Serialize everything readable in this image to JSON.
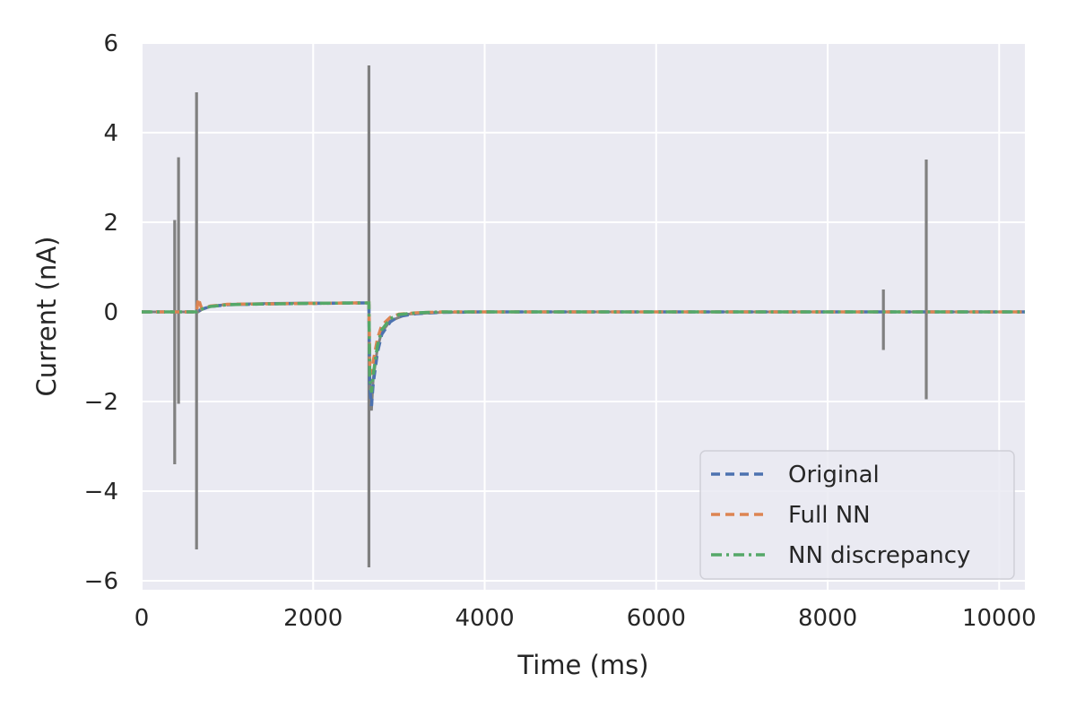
{
  "chart_data": {
    "type": "line",
    "title": "",
    "xlabel": "Time (ms)",
    "ylabel": "Current (nA)",
    "xlim": [
      0,
      10300
    ],
    "ylim": [
      -6.2,
      6.0
    ],
    "xticks": [
      0,
      2000,
      4000,
      6000,
      8000,
      10000
    ],
    "xtick_labels": [
      "0",
      "2000",
      "4000",
      "6000",
      "8000",
      "10000"
    ],
    "yticks": [
      -6,
      -4,
      -2,
      0,
      2,
      4,
      6
    ],
    "ytick_labels": [
      "−6",
      "−4",
      "−2",
      "0",
      "2",
      "4",
      "6"
    ],
    "grid": true,
    "legend_position": "lower-right",
    "raw_trace": {
      "color": "#808080",
      "baseline_segments": [
        {
          "x": [
            0,
            400,
            420,
            660,
            700,
            800,
            1000,
            1500,
            2000,
            2500,
            2650
          ],
          "y": [
            0,
            0,
            0,
            0,
            0.05,
            0.12,
            0.17,
            0.19,
            0.2,
            0.2,
            0.2
          ]
        },
        {
          "x": [
            2650,
            2665,
            2680,
            2700,
            2750,
            2800,
            2900,
            3100,
            3500,
            4000,
            5000,
            10300
          ],
          "y": [
            0.2,
            -2.0,
            -2.2,
            -1.5,
            -0.8,
            -0.45,
            -0.2,
            -0.05,
            -0.01,
            0,
            0,
            0
          ]
        }
      ],
      "spikes": [
        {
          "x": 385,
          "ymin": -3.4,
          "ymax": 2.05
        },
        {
          "x": 430,
          "ymin": -2.05,
          "ymax": 3.45
        },
        {
          "x": 640,
          "ymin": -5.3,
          "ymax": 4.9
        },
        {
          "x": 2650,
          "ymin": -5.7,
          "ymax": 5.5
        },
        {
          "x": 8650,
          "ymin": -0.85,
          "ymax": 0.5
        },
        {
          "x": 9150,
          "ymin": -1.95,
          "ymax": 3.4
        }
      ]
    },
    "series": [
      {
        "name": "Original",
        "color": "#4c72b0",
        "dash": "dashed",
        "x": [
          0,
          400,
          640,
          700,
          800,
          1000,
          1500,
          2000,
          2500,
          2650,
          2660,
          2680,
          2700,
          2750,
          2800,
          2900,
          3000,
          3200,
          3500,
          4000,
          5000,
          10300
        ],
        "y": [
          0,
          0,
          0,
          0.06,
          0.12,
          0.16,
          0.18,
          0.19,
          0.2,
          0.2,
          -1.7,
          -2.1,
          -1.6,
          -0.9,
          -0.5,
          -0.22,
          -0.1,
          -0.04,
          -0.01,
          0,
          0,
          0
        ]
      },
      {
        "name": "Full NN",
        "color": "#dd8452",
        "dash": "dashed",
        "x": [
          0,
          400,
          640,
          660,
          700,
          800,
          1000,
          1500,
          2000,
          2500,
          2650,
          2660,
          2680,
          2700,
          2750,
          2800,
          2900,
          3000,
          3200,
          3500,
          4000,
          5000,
          10300
        ],
        "y": [
          0,
          0,
          0,
          0.3,
          0.07,
          0.13,
          0.17,
          0.18,
          0.19,
          0.2,
          0.2,
          -1.2,
          -1.4,
          -1.1,
          -0.6,
          -0.3,
          -0.12,
          -0.05,
          -0.02,
          0,
          0,
          0,
          0
        ]
      },
      {
        "name": "NN discrepancy",
        "color": "#55a868",
        "dash": "dashdot",
        "x": [
          0,
          400,
          640,
          700,
          800,
          1000,
          1500,
          2000,
          2500,
          2650,
          2660,
          2680,
          2700,
          2750,
          2800,
          2900,
          3000,
          3200,
          3500,
          4000,
          5000,
          10300
        ],
        "y": [
          0,
          0,
          0,
          0.06,
          0.12,
          0.16,
          0.18,
          0.19,
          0.2,
          0.2,
          -1.5,
          -1.8,
          -1.4,
          -0.75,
          -0.4,
          -0.15,
          -0.06,
          -0.02,
          0,
          0,
          0,
          0
        ]
      }
    ]
  }
}
